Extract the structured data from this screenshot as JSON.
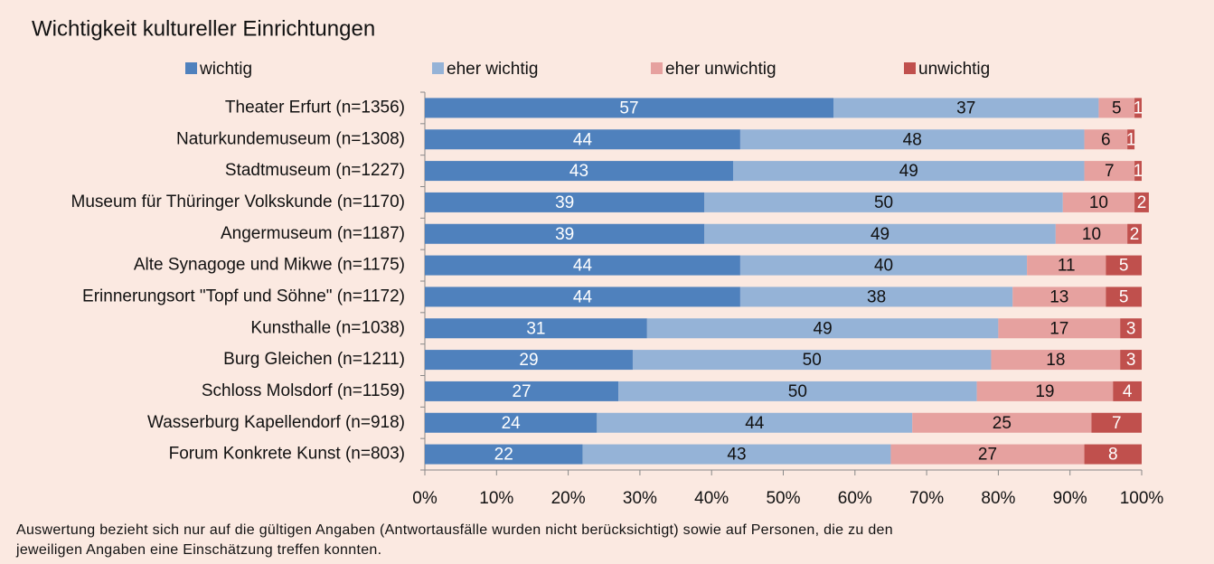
{
  "chart_data": {
    "type": "stacked_barh",
    "title": "Wichtigkeit kultureller Einrichtungen",
    "categories": [
      "Theater Erfurt (n=1356)",
      "Naturkundemuseum (n=1308)",
      "Stadtmuseum (n=1227)",
      "Museum für Thüringer Volkskunde (n=1170)",
      "Angermuseum (n=1187)",
      "Alte Synagoge und Mikwe (n=1175)",
      "Erinnerungsort \"Topf und Söhne\" (n=1172)",
      "Kunsthalle (n=1038)",
      "Burg Gleichen (n=1211)",
      "Schloss Molsdorf (n=1159)",
      "Wasserburg Kapellendorf (n=918)",
      "Forum Konkrete Kunst (n=803)"
    ],
    "series": [
      {
        "name": "wichtig",
        "color": "#4f81bd",
        "values": [
          57,
          44,
          43,
          39,
          39,
          44,
          44,
          31,
          29,
          27,
          24,
          22
        ]
      },
      {
        "name": "eher wichtig",
        "color": "#95b3d7",
        "values": [
          37,
          48,
          49,
          50,
          49,
          40,
          38,
          49,
          50,
          50,
          44,
          43
        ]
      },
      {
        "name": "eher unwichtig",
        "color": "#e6a19f",
        "values": [
          5,
          6,
          7,
          10,
          10,
          11,
          13,
          17,
          18,
          19,
          25,
          27
        ]
      },
      {
        "name": "unwichtig",
        "color": "#c0504d",
        "values": [
          1,
          1,
          1,
          2,
          2,
          5,
          5,
          3,
          3,
          4,
          7,
          8
        ]
      }
    ],
    "xlim": [
      0,
      100
    ],
    "xticks": [
      {
        "value": 0,
        "label": "0%"
      },
      {
        "value": 10,
        "label": "10%"
      },
      {
        "value": 20,
        "label": "20%"
      },
      {
        "value": 30,
        "label": "30%"
      },
      {
        "value": 40,
        "label": "40%"
      },
      {
        "value": 50,
        "label": "50%"
      },
      {
        "value": 60,
        "label": "60%"
      },
      {
        "value": 70,
        "label": "70%"
      },
      {
        "value": 80,
        "label": "80%"
      },
      {
        "value": 90,
        "label": "90%"
      },
      {
        "value": 100,
        "label": "100%"
      }
    ],
    "legend": "top",
    "note": "Auswertung bezieht sich nur auf die gültigen Angaben (Antwortausfälle wurden nicht berücksichtigt) sowie auf Personen, die zu den jeweiligen Angaben eine Einschätzung treffen konnten."
  }
}
